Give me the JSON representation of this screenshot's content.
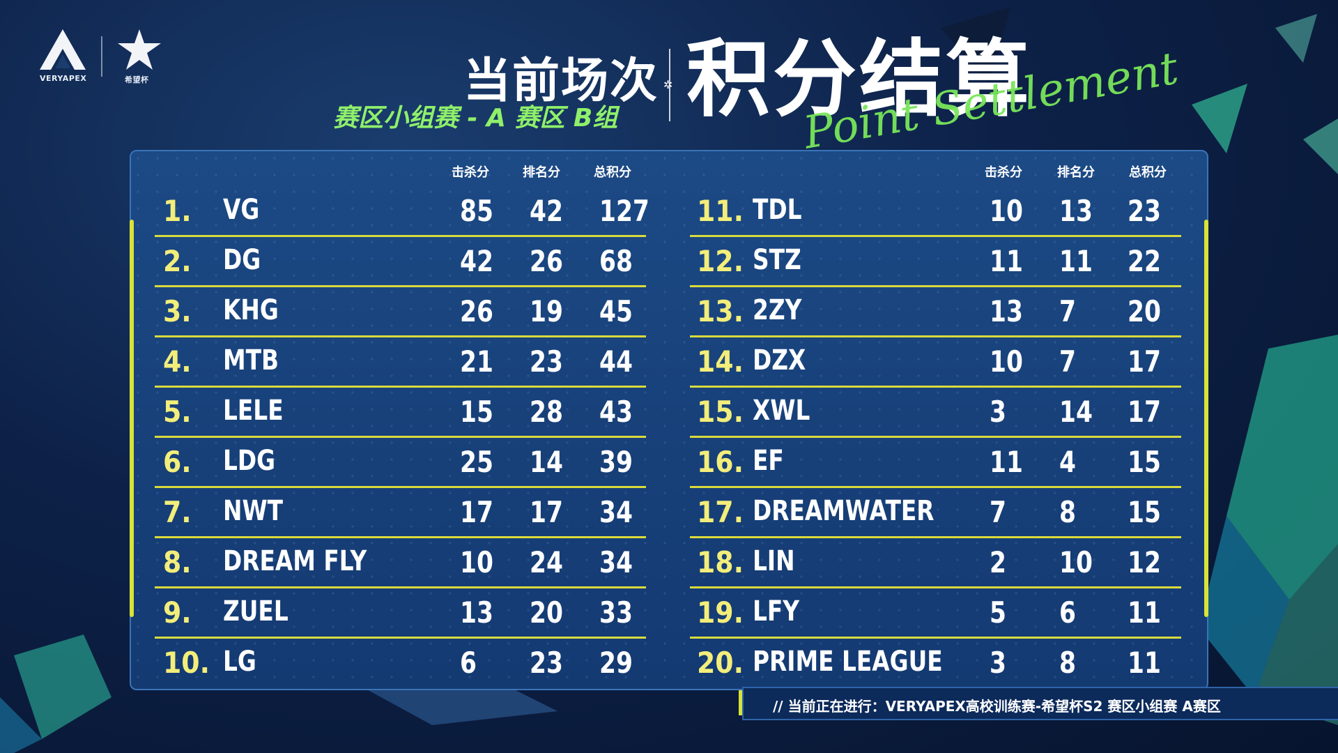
{
  "logos": {
    "left_caption": "VERYAPEX",
    "right_caption": "希望杯"
  },
  "header": {
    "title_small": "当前场次",
    "subtitle": "赛区小组赛 - A 赛区 B组",
    "title_big": "积分结算",
    "title_script": "Point Settlement"
  },
  "columns": {
    "kills": "击杀分",
    "placement": "排名分",
    "total": "总积分"
  },
  "standings_left": [
    {
      "rank": "1.",
      "team": "VG",
      "kills": "85",
      "placement": "42",
      "total": "127"
    },
    {
      "rank": "2.",
      "team": "DG",
      "kills": "42",
      "placement": "26",
      "total": "68"
    },
    {
      "rank": "3.",
      "team": "KHG",
      "kills": "26",
      "placement": "19",
      "total": "45"
    },
    {
      "rank": "4.",
      "team": "MTB",
      "kills": "21",
      "placement": "23",
      "total": "44"
    },
    {
      "rank": "5.",
      "team": "LELE",
      "kills": "15",
      "placement": "28",
      "total": "43"
    },
    {
      "rank": "6.",
      "team": "LDG",
      "kills": "25",
      "placement": "14",
      "total": "39"
    },
    {
      "rank": "7.",
      "team": "NWT",
      "kills": "17",
      "placement": "17",
      "total": "34"
    },
    {
      "rank": "8.",
      "team": "DREAM FLY",
      "kills": "10",
      "placement": "24",
      "total": "34"
    },
    {
      "rank": "9.",
      "team": "ZUEL",
      "kills": "13",
      "placement": "20",
      "total": "33"
    },
    {
      "rank": "10.",
      "team": "LG",
      "kills": "6",
      "placement": "23",
      "total": "29"
    }
  ],
  "standings_right": [
    {
      "rank": "11.",
      "team": "TDL",
      "kills": "10",
      "placement": "13",
      "total": "23"
    },
    {
      "rank": "12.",
      "team": "STZ",
      "kills": "11",
      "placement": "11",
      "total": "22"
    },
    {
      "rank": "13.",
      "team": "2ZY",
      "kills": "13",
      "placement": "7",
      "total": "20"
    },
    {
      "rank": "14.",
      "team": "DZX",
      "kills": "10",
      "placement": "7",
      "total": "17"
    },
    {
      "rank": "15.",
      "team": "XWL",
      "kills": "3",
      "placement": "14",
      "total": "17"
    },
    {
      "rank": "16.",
      "team": "EF",
      "kills": "11",
      "placement": "4",
      "total": "15"
    },
    {
      "rank": "17.",
      "team": "DREAMWATER",
      "kills": "7",
      "placement": "8",
      "total": "15"
    },
    {
      "rank": "18.",
      "team": "LIN",
      "kills": "2",
      "placement": "10",
      "total": "12"
    },
    {
      "rank": "19.",
      "team": "LFY",
      "kills": "5",
      "placement": "6",
      "total": "11"
    },
    {
      "rank": "20.",
      "team": "PRIME LEAGUE",
      "kills": "3",
      "placement": "8",
      "total": "11"
    }
  ],
  "ticker": {
    "text": "//   当前正在进行：VERYAPEX高校训练赛-希望杯S2  赛区小组赛    A赛区"
  },
  "colors": {
    "accent_yellow": "#d9db3c",
    "rank_yellow": "#f3ee7a",
    "subtitle_green": "#8ff06a",
    "board_blue": "#1c4a85"
  }
}
